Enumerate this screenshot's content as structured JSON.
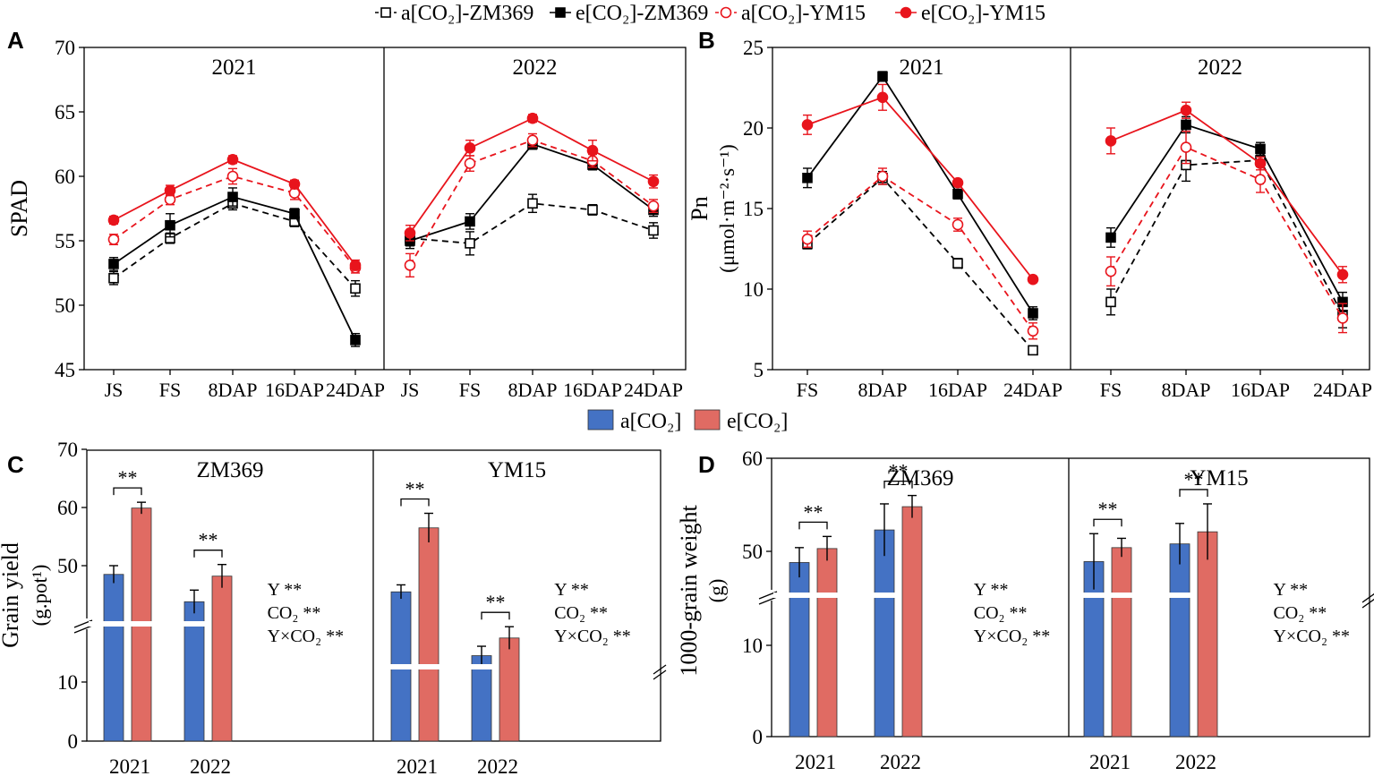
{
  "chart_data": [
    {
      "panel": "A",
      "type": "line",
      "ylabel": "SPAD",
      "ylim": [
        45,
        70
      ],
      "yticks": [
        45,
        50,
        55,
        60,
        65,
        70
      ],
      "legend": {
        "position": "top-center",
        "entries": [
          "a[CO₂]-ZM369",
          "e[CO₂]-ZM369",
          "a[CO₂]-YM15",
          "e[CO₂]-YM15"
        ]
      },
      "facets": [
        {
          "title": "2021",
          "categories": [
            "JS",
            "FS",
            "8DAP",
            "16DAP",
            "24DAP"
          ],
          "series": [
            {
              "name": "a[CO₂]-ZM369",
              "values": [
                52.1,
                55.2,
                57.9,
                56.5,
                51.3
              ],
              "err": [
                0.5,
                0.4,
                0.5,
                0.4,
                0.6
              ]
            },
            {
              "name": "e[CO₂]-ZM369",
              "values": [
                53.2,
                56.2,
                58.4,
                57.1,
                47.3
              ],
              "err": [
                0.5,
                0.9,
                0.7,
                0.4,
                0.5
              ]
            },
            {
              "name": "a[CO₂]-YM15",
              "values": [
                55.1,
                58.2,
                60.0,
                58.7,
                52.9
              ],
              "err": [
                0.4,
                0.4,
                0.6,
                0.5,
                0.4
              ]
            },
            {
              "name": "e[CO₂]-YM15",
              "values": [
                56.6,
                58.9,
                61.3,
                59.4,
                53.1
              ],
              "err": [
                0.3,
                0.4,
                0.3,
                0.3,
                0.4
              ]
            }
          ]
        },
        {
          "title": "2022",
          "categories": [
            "JS",
            "FS",
            "8DAP",
            "16DAP",
            "24DAP"
          ],
          "series": [
            {
              "name": "a[CO₂]-ZM369",
              "values": [
                55.2,
                54.8,
                57.9,
                57.4,
                55.8
              ],
              "err": [
                0.6,
                0.9,
                0.7,
                0.4,
                0.6
              ]
            },
            {
              "name": "e[CO₂]-ZM369",
              "values": [
                55.0,
                56.5,
                62.5,
                60.9,
                57.4
              ],
              "err": [
                0.6,
                0.6,
                0.4,
                0.4,
                0.5
              ]
            },
            {
              "name": "a[CO₂]-YM15",
              "values": [
                53.1,
                61.0,
                62.8,
                61.2,
                57.7
              ],
              "err": [
                0.9,
                0.6,
                0.5,
                0.5,
                0.5
              ]
            },
            {
              "name": "e[CO₂]-YM15",
              "values": [
                55.6,
                62.2,
                64.5,
                62.0,
                59.6
              ],
              "err": [
                0.6,
                0.6,
                0.3,
                0.8,
                0.5
              ]
            }
          ]
        }
      ]
    },
    {
      "panel": "B",
      "type": "line",
      "ylabel_line1": "Pn",
      "ylabel_line2": "(μmol·m⁻²·s⁻¹)",
      "ylim": [
        5,
        25
      ],
      "yticks": [
        5,
        10,
        15,
        20,
        25
      ],
      "facets": [
        {
          "title": "2021",
          "categories": [
            "FS",
            "8DAP",
            "16DAP",
            "24DAP"
          ],
          "series": [
            {
              "name": "a[CO₂]-ZM369",
              "values": [
                12.8,
                16.9,
                11.6,
                6.2
              ],
              "err": [
                0.3,
                0.4,
                0.3,
                0.2
              ]
            },
            {
              "name": "e[CO₂]-ZM369",
              "values": [
                16.9,
                23.2,
                15.9,
                8.5
              ],
              "err": [
                0.6,
                0.3,
                0.3,
                0.4
              ]
            },
            {
              "name": "a[CO₂]-YM15",
              "values": [
                13.1,
                17.0,
                14.0,
                7.4
              ],
              "err": [
                0.5,
                0.5,
                0.4,
                0.5
              ]
            },
            {
              "name": "e[CO₂]-YM15",
              "values": [
                20.2,
                21.9,
                16.6,
                10.6
              ],
              "err": [
                0.6,
                0.8,
                0.2,
                0.2
              ]
            }
          ]
        },
        {
          "title": "2022",
          "categories": [
            "FS",
            "8DAP",
            "16DAP",
            "24DAP"
          ],
          "series": [
            {
              "name": "a[CO₂]-ZM369",
              "values": [
                9.2,
                17.7,
                18.0,
                8.4
              ],
              "err": [
                0.8,
                1.0,
                0.4,
                0.8
              ]
            },
            {
              "name": "e[CO₂]-ZM369",
              "values": [
                13.2,
                20.2,
                18.7,
                9.2
              ],
              "err": [
                0.6,
                0.5,
                0.4,
                0.6
              ]
            },
            {
              "name": "a[CO₂]-YM15",
              "values": [
                11.1,
                18.8,
                16.8,
                8.2
              ],
              "err": [
                0.9,
                1.0,
                0.8,
                0.9
              ]
            },
            {
              "name": "e[CO₂]-YM15",
              "values": [
                19.2,
                21.1,
                17.8,
                10.9
              ],
              "err": [
                0.8,
                0.5,
                0.4,
                0.5
              ]
            }
          ]
        }
      ]
    },
    {
      "panel": "C",
      "type": "bar",
      "ylabel_line1": "Grain yield",
      "ylabel_line2": "(g.pot¹)",
      "yticks": [
        0,
        10,
        50,
        60,
        70
      ],
      "axis_break": true,
      "legend": {
        "position": "top-center",
        "entries": [
          "a[CO₂]",
          "e[CO₂]"
        ]
      },
      "colors": {
        "a[CO₂]": "#4472C4",
        "e[CO₂]": "#E06B63"
      },
      "facets": [
        {
          "title": "ZM369",
          "categories": [
            "2021",
            "2022"
          ],
          "series": [
            {
              "name": "a[CO₂]",
              "values": [
                48.5,
                43.8
              ],
              "err": [
                1.5,
                2.0
              ]
            },
            {
              "name": "e[CO₂]",
              "values": [
                59.9,
                48.2
              ],
              "err": [
                1.0,
                2.0
              ]
            }
          ],
          "significance": [
            "**",
            "**"
          ],
          "stats": [
            "Y **",
            "CO₂ **",
            "Y×CO₂ **"
          ]
        },
        {
          "title": "YM15",
          "categories": [
            "2021",
            "2022"
          ],
          "series": [
            {
              "name": "a[CO₂]",
              "values": [
                45.5,
                15.3
              ],
              "err": [
                1.2,
                2.5
              ]
            },
            {
              "name": "e[CO₂]",
              "values": [
                56.5,
                20.0
              ],
              "err": [
                2.5,
                3.0
              ]
            }
          ],
          "significance": [
            "**",
            "**"
          ],
          "stats": [
            "Y **",
            "CO₂ **",
            "Y×CO₂ **"
          ]
        }
      ]
    },
    {
      "panel": "D",
      "type": "bar",
      "ylabel_line1": "1000-grain weight",
      "ylabel_line2": "(g)",
      "yticks": [
        0,
        10,
        50,
        60
      ],
      "axis_break": true,
      "facets": [
        {
          "title": "ZM369",
          "categories": [
            "2021",
            "2022"
          ],
          "series": [
            {
              "name": "a[CO₂]",
              "values": [
                48.8,
                52.3
              ],
              "err": [
                1.6,
                2.8
              ]
            },
            {
              "name": "e[CO₂]",
              "values": [
                50.3,
                54.8
              ],
              "err": [
                1.3,
                1.2
              ]
            }
          ],
          "significance": [
            "**",
            "**"
          ],
          "stats": [
            "Y **",
            "CO₂ **",
            "Y×CO₂ **"
          ]
        },
        {
          "title": "YM15",
          "categories": [
            "2021",
            "2022"
          ],
          "series": [
            {
              "name": "a[CO₂]",
              "values": [
                48.9,
                50.8
              ],
              "err": [
                3.0,
                2.2
              ]
            },
            {
              "name": "e[CO₂]",
              "values": [
                50.4,
                52.1
              ],
              "err": [
                1.0,
                3.0
              ]
            }
          ],
          "significance": [
            "**",
            "**"
          ],
          "stats": [
            "Y **",
            "CO₂ **",
            "Y×CO₂ **"
          ]
        }
      ]
    }
  ]
}
